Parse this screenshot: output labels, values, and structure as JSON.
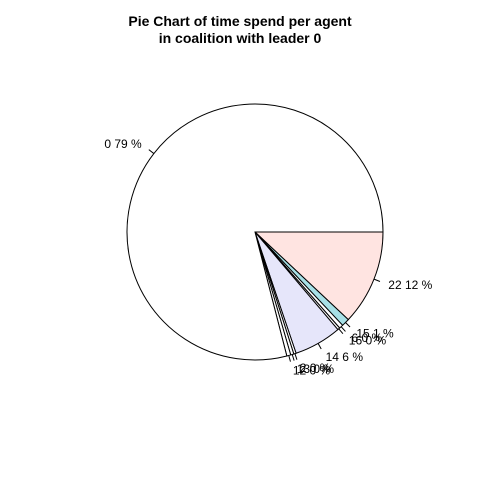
{
  "chart_data": {
    "type": "pie",
    "title": [
      "Pie Chart of time spend per agent",
      "in coalition with leader 0"
    ],
    "slices": [
      {
        "label": "22 12 %",
        "value": 12,
        "color": "#FFE4E1"
      },
      {
        "label": "15 1 %",
        "value": 1,
        "color": "#A7E0E6"
      },
      {
        "label": "6 0 %",
        "value": 0.5,
        "color": "#FFFFFF"
      },
      {
        "label": "16 0 %",
        "value": 0.3,
        "color": "#FFFFFF"
      },
      {
        "label": "14 6 %",
        "value": 6,
        "color": "#E6E6FA"
      },
      {
        "label": "2 0 %",
        "value": 0.3,
        "color": "#FFFFFF"
      },
      {
        "label": "13 0 %",
        "value": 0.4,
        "color": "#FFFFFF"
      },
      {
        "label": "12 0 %",
        "value": 0.5,
        "color": "#FFFFFF"
      },
      {
        "label": "0 79 %",
        "value": 79,
        "color": "#FFFFFF"
      }
    ],
    "direction": "clockwise",
    "start": "east"
  }
}
